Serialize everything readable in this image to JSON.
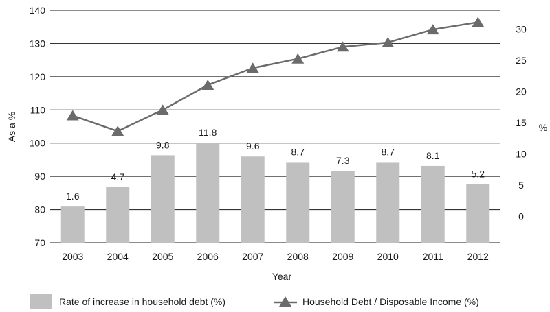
{
  "chart_data": {
    "type": "bar",
    "categories": [
      "2003",
      "2004",
      "2005",
      "2006",
      "2007",
      "2008",
      "2009",
      "2010",
      "2011",
      "2012"
    ],
    "series": [
      {
        "name": "Rate of increase in household debt (%)",
        "type": "bar",
        "axis": "right",
        "values": [
          1.6,
          4.7,
          9.8,
          11.8,
          9.6,
          8.7,
          7.3,
          8.7,
          8.1,
          5.2
        ],
        "color": "#c0c0c0"
      },
      {
        "name": "Household Debt / Disposable Income (%)",
        "type": "line",
        "axis": "left",
        "values": [
          108.3,
          103.6,
          110.0,
          117.5,
          122.6,
          125.4,
          129.0,
          130.3,
          134.2,
          136.4
        ],
        "color": "#6b6b6b",
        "marker": "triangle"
      }
    ],
    "xlabel": "Year",
    "ylabel_left": "As a %",
    "ylabel_right": "%",
    "ylim_left": [
      70,
      140
    ],
    "yticks_left": [
      70,
      80,
      90,
      100,
      110,
      120,
      130,
      140
    ],
    "ylim_right": [
      -4.2,
      33
    ],
    "yticks_right": [
      0,
      5,
      10,
      15,
      20,
      25,
      30
    ],
    "grid": "horizontal",
    "legend_position": "bottom"
  }
}
